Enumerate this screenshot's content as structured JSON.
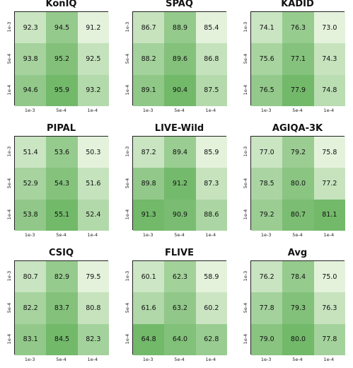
{
  "colors": {
    "low": "#e4f2dc",
    "high": "#72b96a",
    "border": "#222222"
  },
  "chart_data": [
    {
      "type": "heatmap",
      "title": "KonIQ",
      "x_ticks": [
        "1e-3",
        "5e-4",
        "1e-4"
      ],
      "y_ticks": [
        "1e-3",
        "5e-4",
        "1e-4"
      ],
      "values": [
        [
          92.3,
          94.5,
          91.2
        ],
        [
          93.8,
          95.2,
          92.5
        ],
        [
          94.6,
          95.9,
          93.2
        ]
      ]
    },
    {
      "type": "heatmap",
      "title": "SPAQ",
      "x_ticks": [
        "1e-3",
        "5e-4",
        "1e-4"
      ],
      "y_ticks": [
        "1e-3",
        "5e-4",
        "1e-4"
      ],
      "values": [
        [
          86.7,
          88.9,
          85.4
        ],
        [
          88.2,
          89.6,
          86.8
        ],
        [
          89.1,
          90.4,
          87.5
        ]
      ]
    },
    {
      "type": "heatmap",
      "title": "KADID",
      "x_ticks": [
        "1e-3",
        "5e-4",
        "1e-4"
      ],
      "y_ticks": [
        "1e-3",
        "5e-4",
        "1e-4"
      ],
      "values": [
        [
          74.1,
          76.3,
          73.0
        ],
        [
          75.6,
          77.1,
          74.3
        ],
        [
          76.5,
          77.9,
          74.8
        ]
      ]
    },
    {
      "type": "heatmap",
      "title": "PIPAL",
      "x_ticks": [
        "1e-3",
        "5e-4",
        "1e-4"
      ],
      "y_ticks": [
        "1e-3",
        "5e-4",
        "1e-4"
      ],
      "values": [
        [
          51.4,
          53.6,
          50.3
        ],
        [
          52.9,
          54.3,
          51.6
        ],
        [
          53.8,
          55.1,
          52.4
        ]
      ]
    },
    {
      "type": "heatmap",
      "title": "LIVE-Wild",
      "x_ticks": [
        "1e-3",
        "5e-4",
        "1e-4"
      ],
      "y_ticks": [
        "1e-3",
        "5e-4",
        "1e-4"
      ],
      "values": [
        [
          87.2,
          89.4,
          85.9
        ],
        [
          89.8,
          91.2,
          87.3
        ],
        [
          91.3,
          90.9,
          88.6
        ]
      ]
    },
    {
      "type": "heatmap",
      "title": "AGIQA-3K",
      "x_ticks": [
        "1e-3",
        "5e-4",
        "1e-4"
      ],
      "y_ticks": [
        "1e-3",
        "5e-4",
        "1e-4"
      ],
      "values": [
        [
          77.0,
          79.2,
          75.8
        ],
        [
          78.5,
          80.0,
          77.2
        ],
        [
          79.2,
          80.7,
          81.1
        ]
      ]
    },
    {
      "type": "heatmap",
      "title": "CSIQ",
      "x_ticks": [
        "1e-3",
        "5e-4",
        "1e-4"
      ],
      "y_ticks": [
        "1e-3",
        "5e-4",
        "1e-4"
      ],
      "values": [
        [
          80.7,
          82.9,
          79.5
        ],
        [
          82.2,
          83.7,
          80.8
        ],
        [
          83.1,
          84.5,
          82.3
        ]
      ]
    },
    {
      "type": "heatmap",
      "title": "FLIVE",
      "x_ticks": [
        "1e-3",
        "5e-4",
        "1e-4"
      ],
      "y_ticks": [
        "1e-3",
        "5e-4",
        "1e-4"
      ],
      "values": [
        [
          60.1,
          62.3,
          58.9
        ],
        [
          61.6,
          63.2,
          60.2
        ],
        [
          64.8,
          64.0,
          62.8
        ]
      ]
    },
    {
      "type": "heatmap",
      "title": "Avg",
      "x_ticks": [
        "1e-3",
        "5e-4",
        "1e-4"
      ],
      "y_ticks": [
        "1e-3",
        "5e-4",
        "1e-4"
      ],
      "values": [
        [
          76.2,
          78.4,
          75.0
        ],
        [
          77.8,
          79.3,
          76.3
        ],
        [
          79.0,
          80.0,
          77.8
        ]
      ]
    }
  ]
}
